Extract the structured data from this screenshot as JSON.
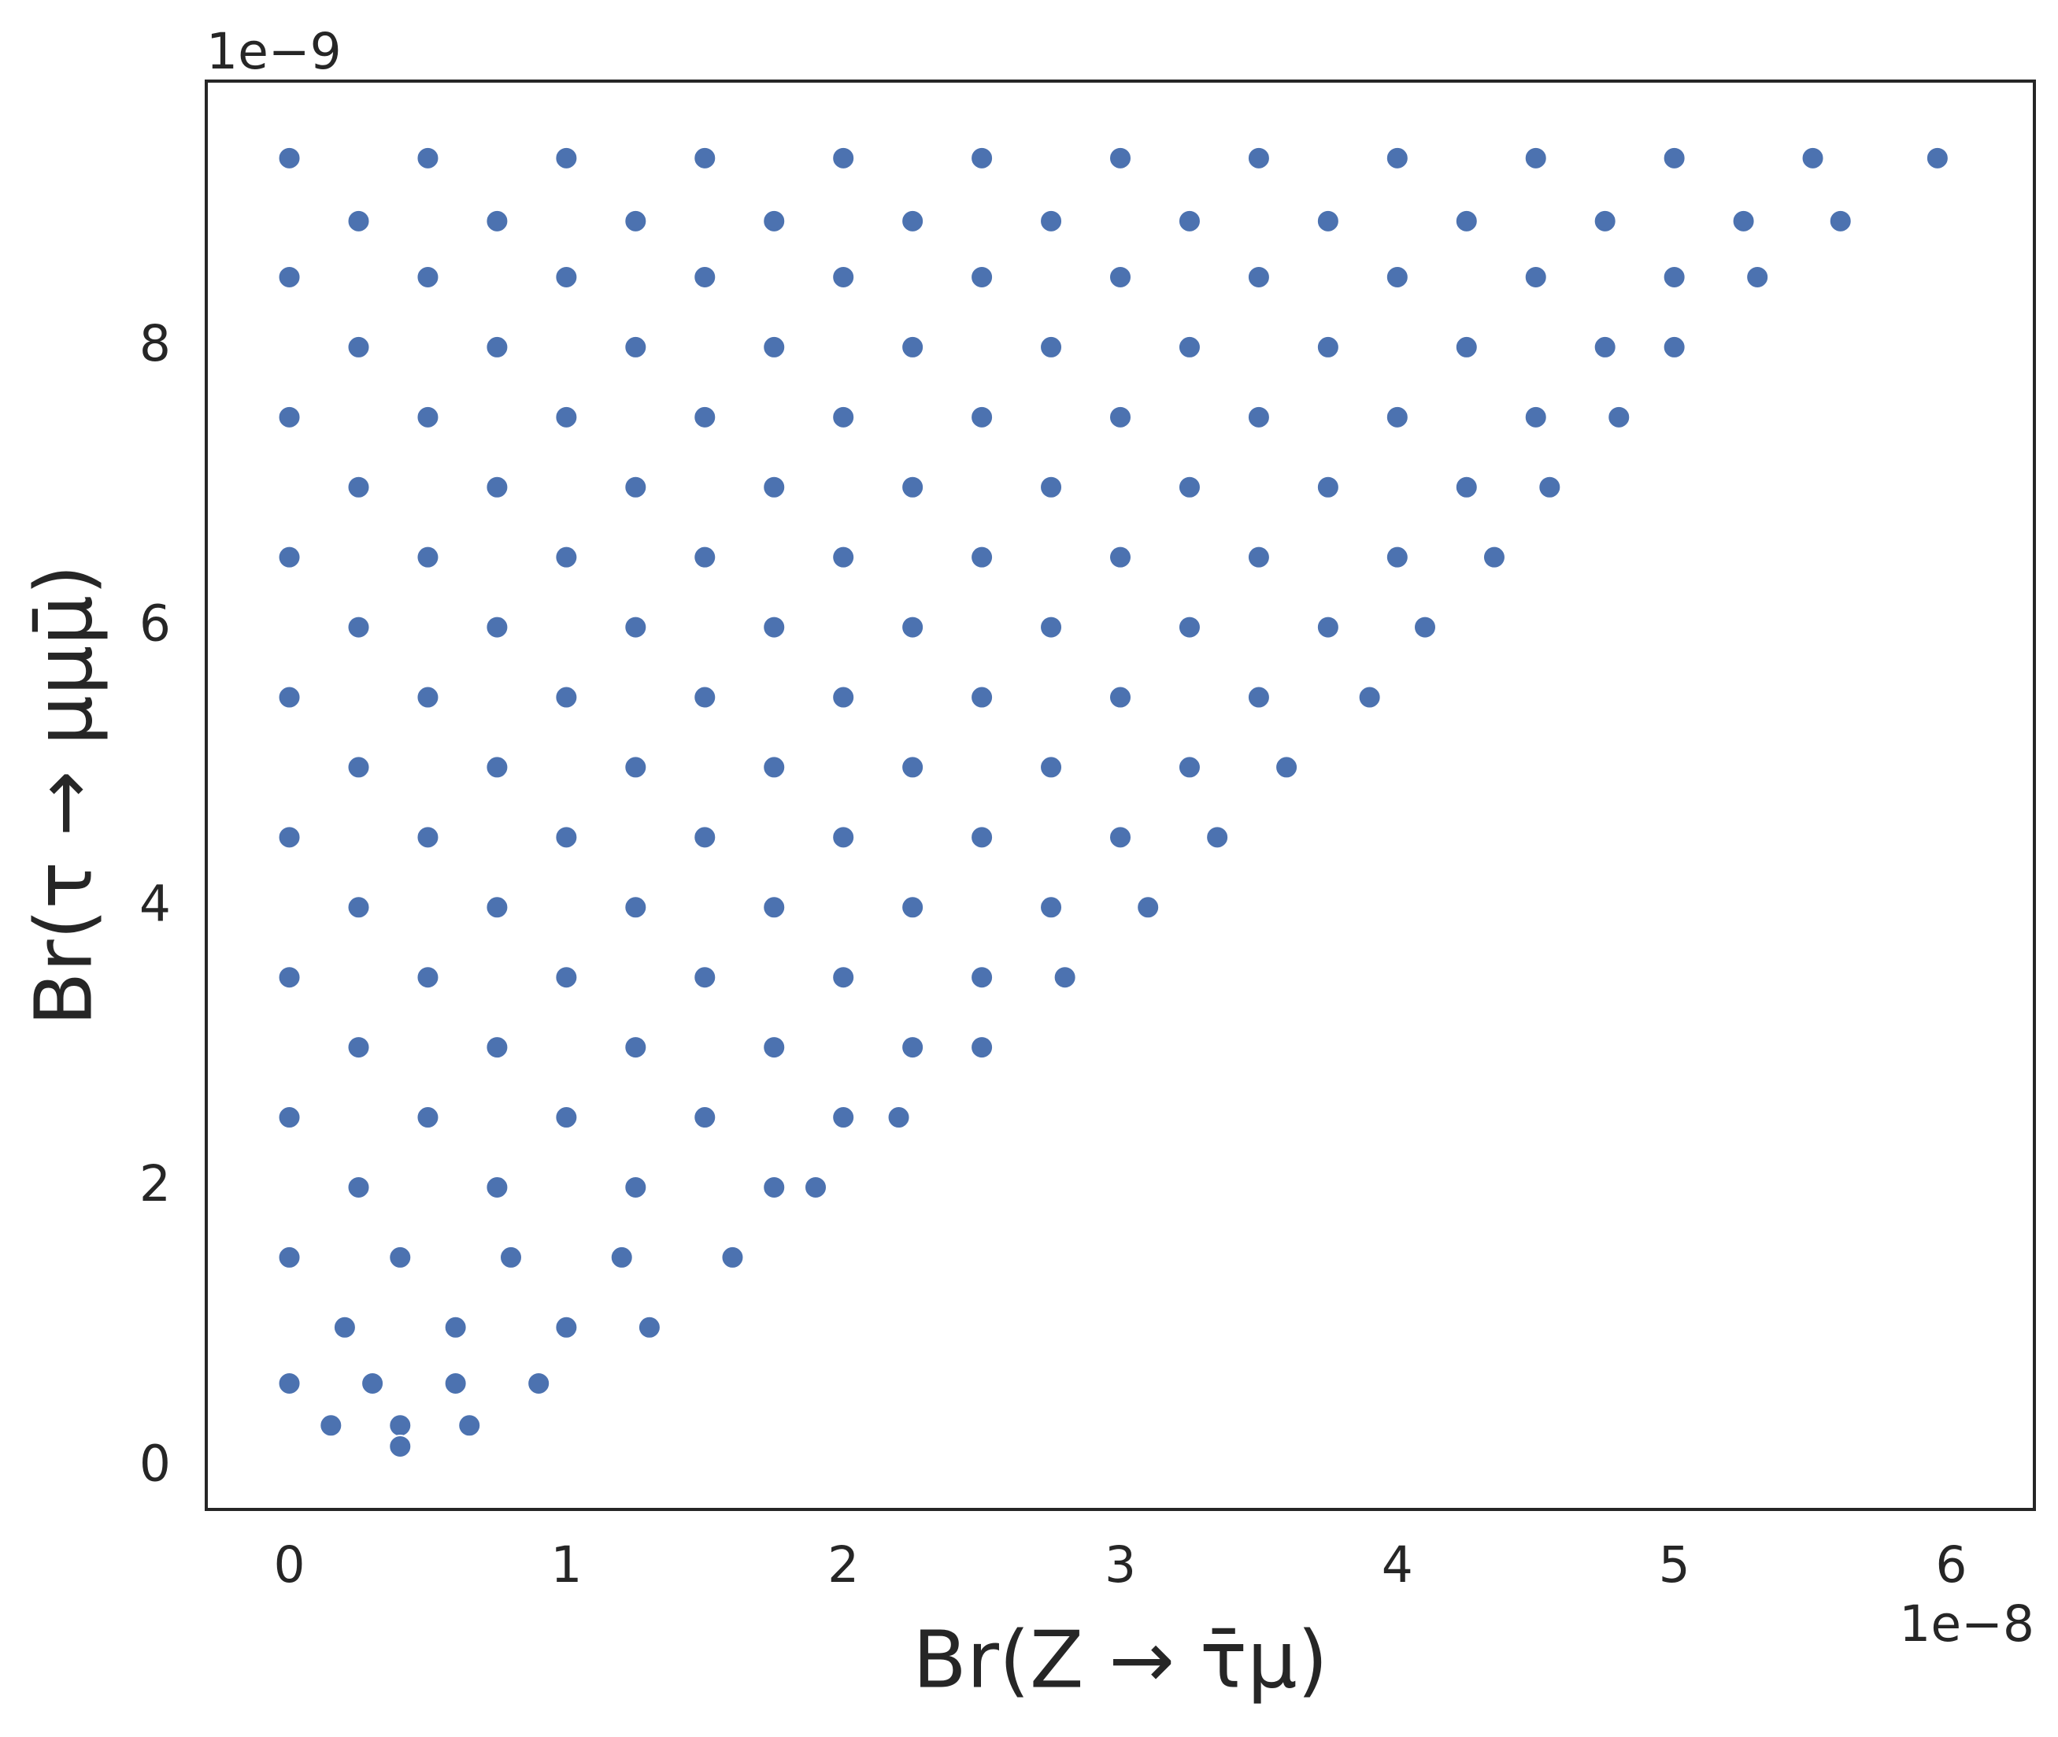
{
  "chart_data": {
    "type": "scatter",
    "xlabel": "Br(Z → τ̄μ)",
    "ylabel": "Br(τ → μμμ̄)",
    "x_offset_label": "1e−8",
    "y_offset_label": "1e−9",
    "color": "#4c72b0",
    "xlim": [
      -0.3,
      6.3
    ],
    "ylim": [
      -0.3,
      9.9
    ],
    "xticks": [
      0,
      1,
      2,
      3,
      4,
      5,
      6
    ],
    "yticks": [
      0,
      2,
      4,
      6,
      8
    ],
    "x": [
      0,
      0.5,
      1,
      1.5,
      2,
      2.5,
      3,
      3.5,
      4,
      4.5,
      5,
      5.5,
      5.95,
      0.25,
      0.75,
      1.25,
      1.75,
      2.25,
      2.75,
      3.25,
      3.75,
      4.25,
      4.75,
      5.25,
      5.6,
      0,
      0.5,
      1,
      1.5,
      2,
      2.5,
      3,
      3.5,
      4,
      4.5,
      5,
      5.3,
      0.25,
      0.75,
      1.25,
      1.75,
      2.25,
      2.75,
      3.25,
      3.75,
      4.25,
      4.75,
      5.0,
      0,
      0.5,
      1,
      1.5,
      2,
      2.5,
      3,
      3.5,
      4,
      4.5,
      4.8,
      0.25,
      0.75,
      1.25,
      1.75,
      2.25,
      2.75,
      3.25,
      3.75,
      4.25,
      4.55,
      0,
      0.5,
      1,
      1.5,
      2,
      2.5,
      3,
      3.5,
      4,
      4.35,
      0.25,
      0.75,
      1.25,
      1.75,
      2.25,
      2.75,
      3.25,
      3.75,
      4.1,
      0,
      0.5,
      1,
      1.5,
      2,
      2.5,
      3,
      3.5,
      3.9,
      0.25,
      0.75,
      1.25,
      1.75,
      2.25,
      2.75,
      3.25,
      3.6,
      0,
      0.5,
      1,
      1.5,
      2,
      2.5,
      3,
      3.35,
      0.25,
      0.75,
      1.25,
      1.75,
      2.25,
      2.75,
      3.1,
      0,
      0.5,
      1,
      1.5,
      2,
      2.5,
      2.8,
      0.25,
      0.75,
      1.25,
      1.75,
      2.25,
      2.5,
      0,
      0.5,
      1,
      1.5,
      2,
      2.2,
      0.25,
      0.75,
      1.25,
      1.75,
      1.9,
      0,
      0.4,
      0.8,
      1.2,
      1.6,
      0.2,
      0.6,
      1.0,
      1.3,
      0,
      0.3,
      0.6,
      0.9,
      0.15,
      0.4,
      0.65,
      0.4
    ],
    "values": [
      9.35,
      9.35,
      9.35,
      9.35,
      9.35,
      9.35,
      9.35,
      9.35,
      9.35,
      9.35,
      9.35,
      9.35,
      9.35,
      8.9,
      8.9,
      8.9,
      8.9,
      8.9,
      8.9,
      8.9,
      8.9,
      8.9,
      8.9,
      8.9,
      8.9,
      8.5,
      8.5,
      8.5,
      8.5,
      8.5,
      8.5,
      8.5,
      8.5,
      8.5,
      8.5,
      8.5,
      8.5,
      8,
      8,
      8,
      8,
      8,
      8,
      8,
      8,
      8,
      8,
      8,
      7.5,
      7.5,
      7.5,
      7.5,
      7.5,
      7.5,
      7.5,
      7.5,
      7.5,
      7.5,
      7.5,
      7,
      7,
      7,
      7,
      7,
      7,
      7,
      7,
      7,
      7,
      6.5,
      6.5,
      6.5,
      6.5,
      6.5,
      6.5,
      6.5,
      6.5,
      6.5,
      6.5,
      6,
      6,
      6,
      6,
      6,
      6,
      6,
      6,
      6,
      5.5,
      5.5,
      5.5,
      5.5,
      5.5,
      5.5,
      5.5,
      5.5,
      5.5,
      5,
      5,
      5,
      5,
      5,
      5,
      5,
      5,
      4.5,
      4.5,
      4.5,
      4.5,
      4.5,
      4.5,
      4.5,
      4.5,
      4,
      4,
      4,
      4,
      4,
      4,
      4,
      3.5,
      3.5,
      3.5,
      3.5,
      3.5,
      3.5,
      3.5,
      3,
      3,
      3,
      3,
      3,
      3,
      2.5,
      2.5,
      2.5,
      2.5,
      2.5,
      2.5,
      2,
      2,
      2,
      2,
      2,
      1.5,
      1.5,
      1.5,
      1.5,
      1.5,
      1,
      1,
      1,
      1,
      0.6,
      0.6,
      0.6,
      0.6,
      0.3,
      0.3,
      0.3,
      0.15
    ]
  }
}
